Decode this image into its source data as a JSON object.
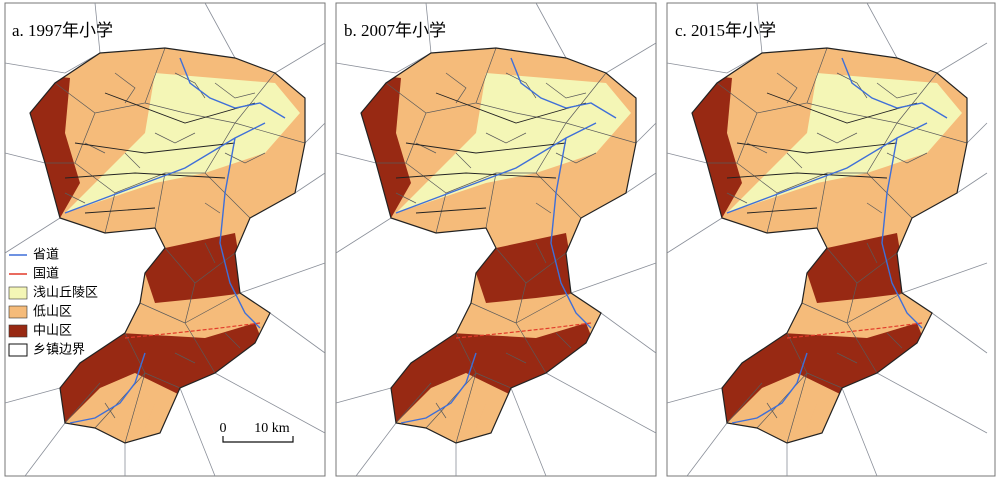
{
  "panels": [
    {
      "title": "a. 1997年小学"
    },
    {
      "title": "b. 2007年小学"
    },
    {
      "title": "c. 2015年小学"
    }
  ],
  "legend": {
    "items": [
      {
        "label": "省道"
      },
      {
        "label": "国道"
      },
      {
        "label": "浅山丘陵区"
      },
      {
        "label": "低山区"
      },
      {
        "label": "中山区"
      },
      {
        "label": "乡镇边界"
      }
    ]
  },
  "scale_bar": {
    "labels": [
      "0",
      "10 km"
    ]
  }
}
